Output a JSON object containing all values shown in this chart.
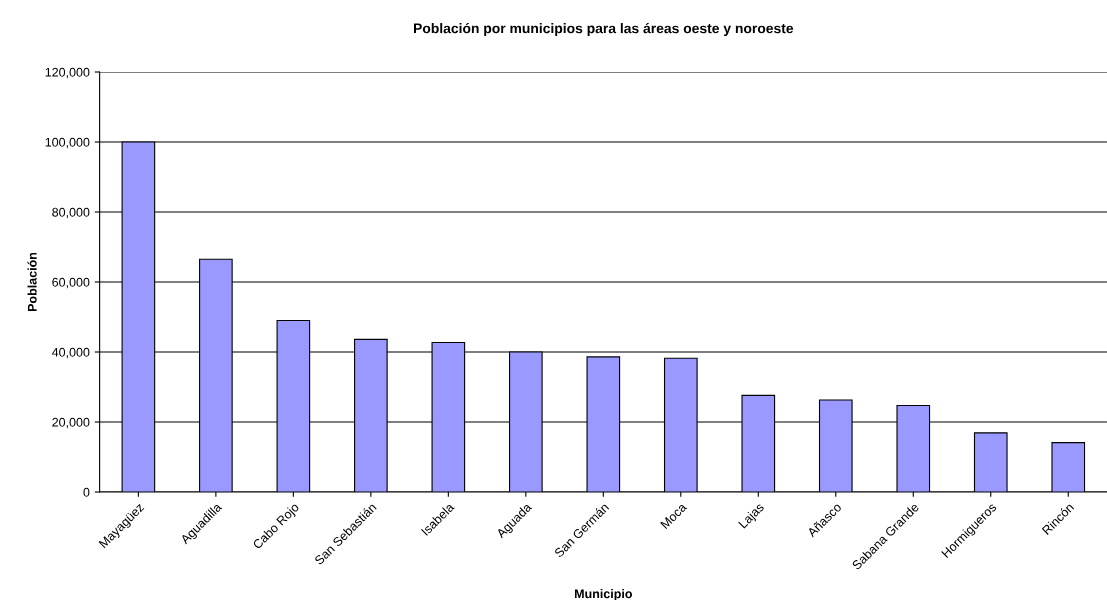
{
  "chart_data": {
    "type": "bar",
    "title": "Población por municipios para las áreas oeste y noroeste",
    "xlabel": "Municipio",
    "ylabel": "Población",
    "categories": [
      "Mayagüez",
      "Aguadilla",
      "Cabo Rojo",
      "San Sebastián",
      "Isabela",
      "Aguada",
      "San Germán",
      "Moca",
      "Lajas",
      "Añasco",
      "Sabana Grande",
      "Hormigueros",
      "Rincón"
    ],
    "values": [
      100000,
      66500,
      49000,
      43600,
      42700,
      40000,
      38600,
      38200,
      27600,
      26300,
      24700,
      16900,
      14100
    ],
    "color": "#9999ff",
    "ylim": [
      0,
      120000
    ],
    "yticks": [
      {
        "value": 0,
        "label": "0"
      },
      {
        "value": 20000,
        "label": "20,000"
      },
      {
        "value": 40000,
        "label": "40,000"
      },
      {
        "value": 60000,
        "label": "60,000"
      },
      {
        "value": 80000,
        "label": "80,000"
      },
      {
        "value": 100000,
        "label": "100,000"
      },
      {
        "value": 120000,
        "label": "120,000"
      }
    ],
    "grid": "y",
    "legend": false
  }
}
